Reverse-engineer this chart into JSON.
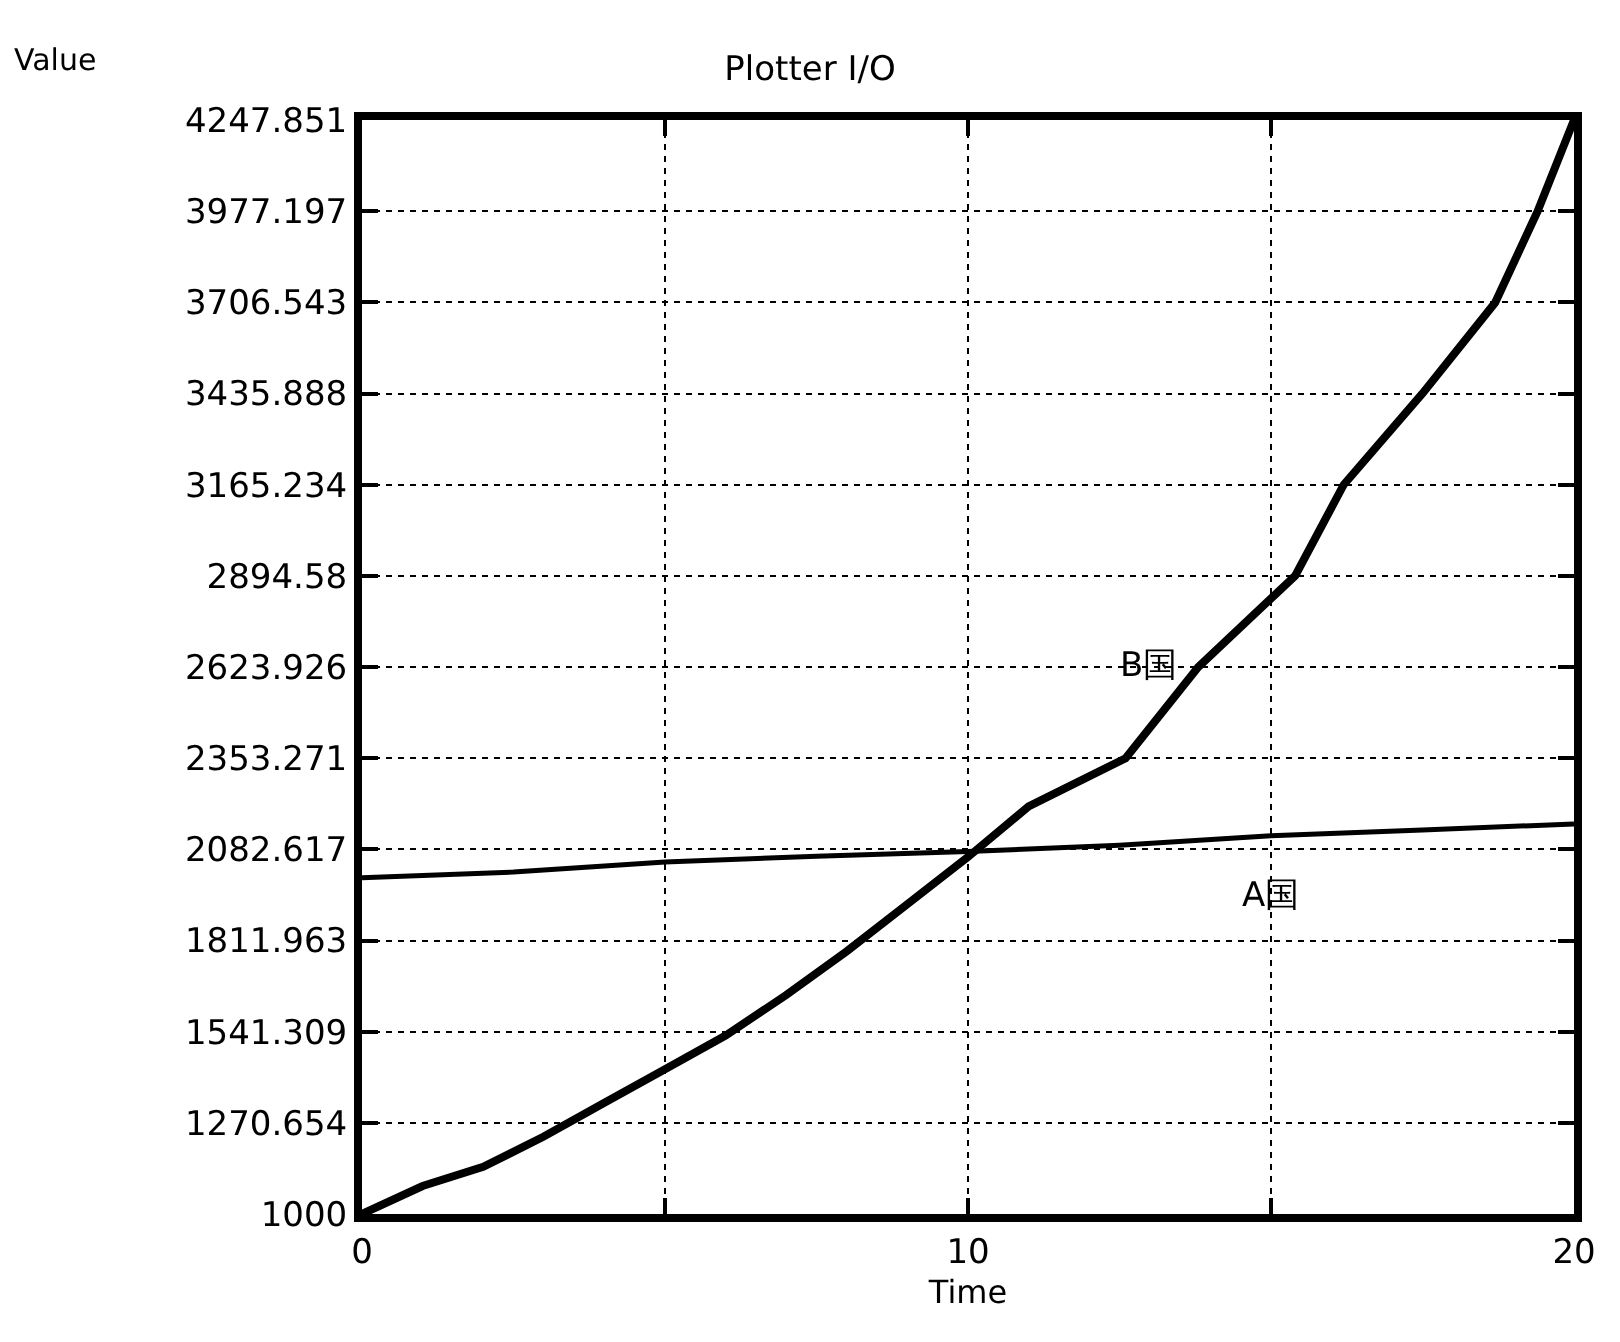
{
  "chart_data": {
    "type": "line",
    "title": "Plotter I/O",
    "xlabel": "Time",
    "ylabel": "Value",
    "xlim": [
      0,
      20
    ],
    "xticks": [
      0,
      {
        "value": 5,
        "label": null
      },
      10,
      {
        "value": 15,
        "label": null
      },
      20
    ],
    "ylim": [
      1000,
      4247.851
    ],
    "yticks": [
      1000,
      1270.654,
      1541.309,
      1811.963,
      2082.617,
      2353.271,
      2623.926,
      2894.58,
      3165.234,
      3435.888,
      3706.543,
      3977.197,
      4247.851
    ],
    "grid": true,
    "line_style": "solid",
    "marker": "none",
    "legend": false,
    "series": [
      {
        "name": "A国",
        "color": "#000000",
        "x": [
          0,
          2.5,
          5,
          7.5,
          10,
          12.5,
          15,
          17.5,
          20
        ],
        "values": [
          1998,
          2015,
          2045,
          2062,
          2076,
          2095,
          2123,
          2140,
          2158
        ]
      },
      {
        "name": "B国",
        "color": "#000000",
        "x": [
          0,
          1,
          2,
          3,
          4,
          5,
          6,
          7,
          8,
          9,
          10,
          11,
          12.6,
          13.8,
          15.4,
          16.2,
          17.5,
          18.7,
          19.4,
          20
        ],
        "values": [
          1000,
          1083,
          1140,
          1230,
          1330,
          1430,
          1530,
          1650,
          1780,
          1920,
          2060,
          2210,
          2353,
          2624,
          2895,
          3165,
          3436,
          3706,
          3977,
          4247.851
        ]
      }
    ]
  }
}
